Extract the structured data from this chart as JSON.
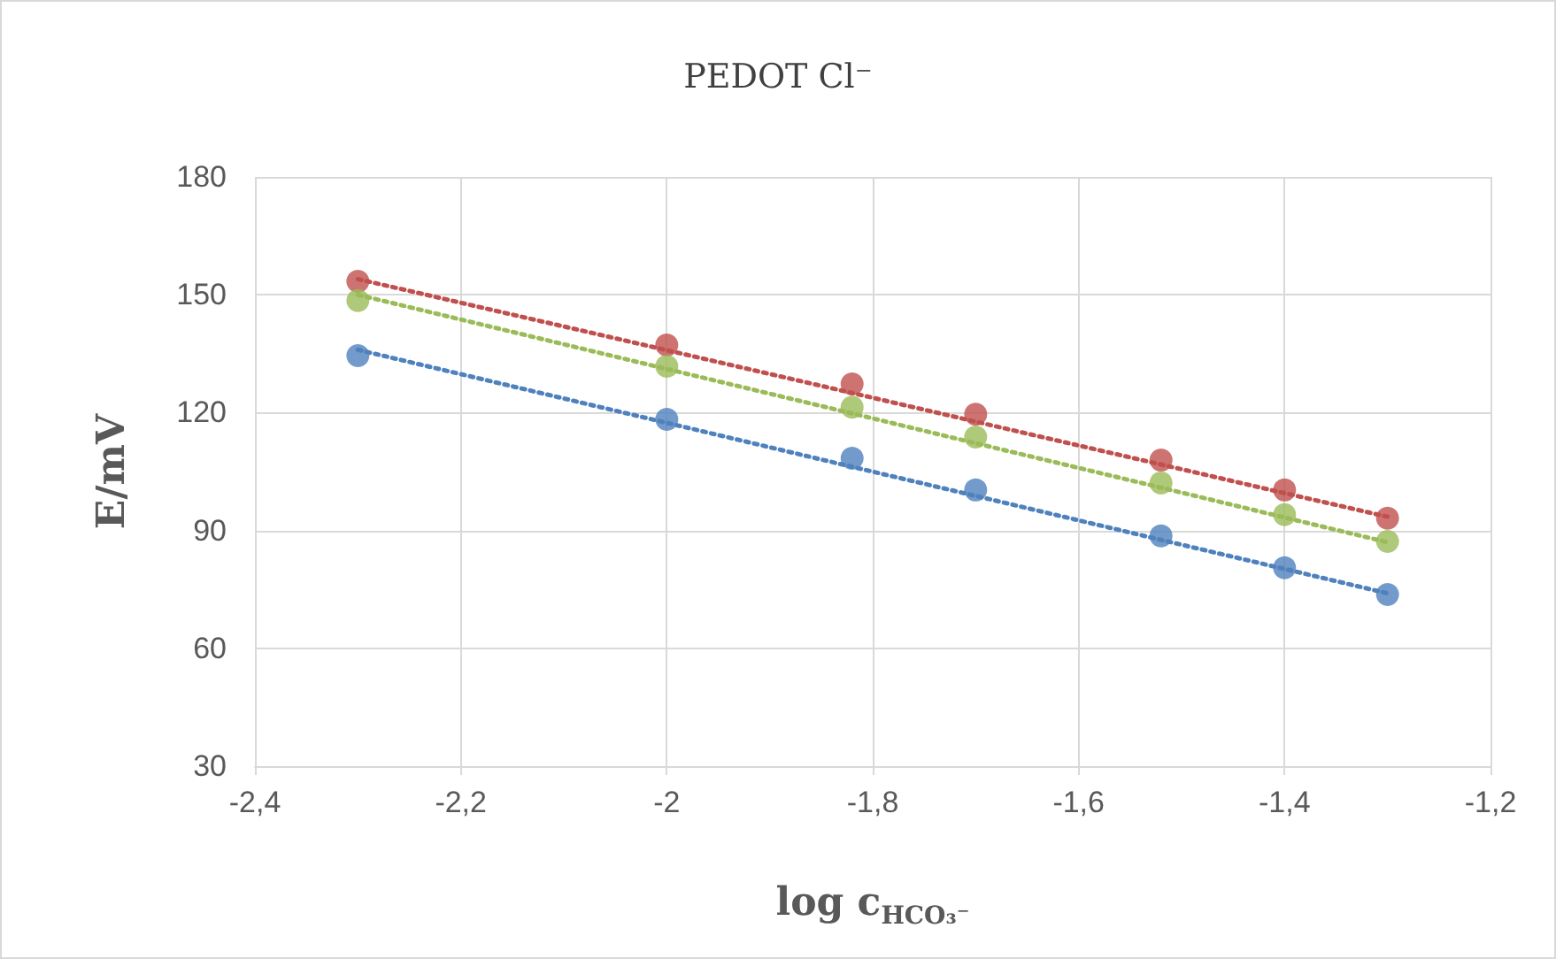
{
  "chart_data": {
    "type": "scatter",
    "title": "PEDOT Cl⁻",
    "xlabel": "log c$_{HCO₃⁻}$",
    "ylabel": "E/mV",
    "x": [
      -2.3,
      -2,
      -1.82,
      -1.7,
      -1.52,
      -1.4,
      -1.3
    ],
    "series": [
      {
        "color": "#c0504d",
        "values": [
          153.4,
          137.2,
          127.3,
          119.6,
          107.9,
          100.3,
          93.1
        ]
      },
      {
        "color": "#9bbb59",
        "values": [
          148.5,
          131.8,
          121.4,
          113.8,
          102.1,
          94.0,
          87.2
        ]
      },
      {
        "color": "#4f81bd",
        "values": [
          134.5,
          118.3,
          108.4,
          100.3,
          88.6,
          80.5,
          73.7
        ]
      },
      {
        "type": "line",
        "color": "#c0504d",
        "values": [
          154,
          135.9,
          125.0,
          117.7,
          106.8,
          99.5,
          93.5
        ],
        "line_style": "dotted",
        "marker": "none"
      },
      {
        "type": "line",
        "color": "#9bbb59",
        "values": [
          150,
          131.1,
          119.8,
          112.2,
          100.9,
          93.3,
          87
        ],
        "line_style": "dotted",
        "marker": "none"
      },
      {
        "type": "line",
        "color": "#4f81bd",
        "values": [
          136,
          117.4,
          106.2,
          98.8,
          87.6,
          80.2,
          74
        ],
        "line_style": "dotted",
        "marker": "none"
      }
    ],
    "marker": "circle",
    "grid": true,
    "xlim": [
      -2.4,
      -1.2
    ],
    "xticks": [
      {
        "value": -2.4,
        "label": "-2,4"
      },
      {
        "value": -2.2,
        "label": "-2,2"
      },
      -2,
      {
        "value": -1.8,
        "label": "-1,8"
      },
      {
        "value": -1.6,
        "label": "-1,6"
      },
      {
        "value": -1.4,
        "label": "-1,4"
      },
      {
        "value": -1.2,
        "label": "-1,2"
      }
    ],
    "ylim": [
      30,
      180
    ],
    "yticks": [
      30,
      60,
      90,
      120,
      150,
      180
    ]
  }
}
